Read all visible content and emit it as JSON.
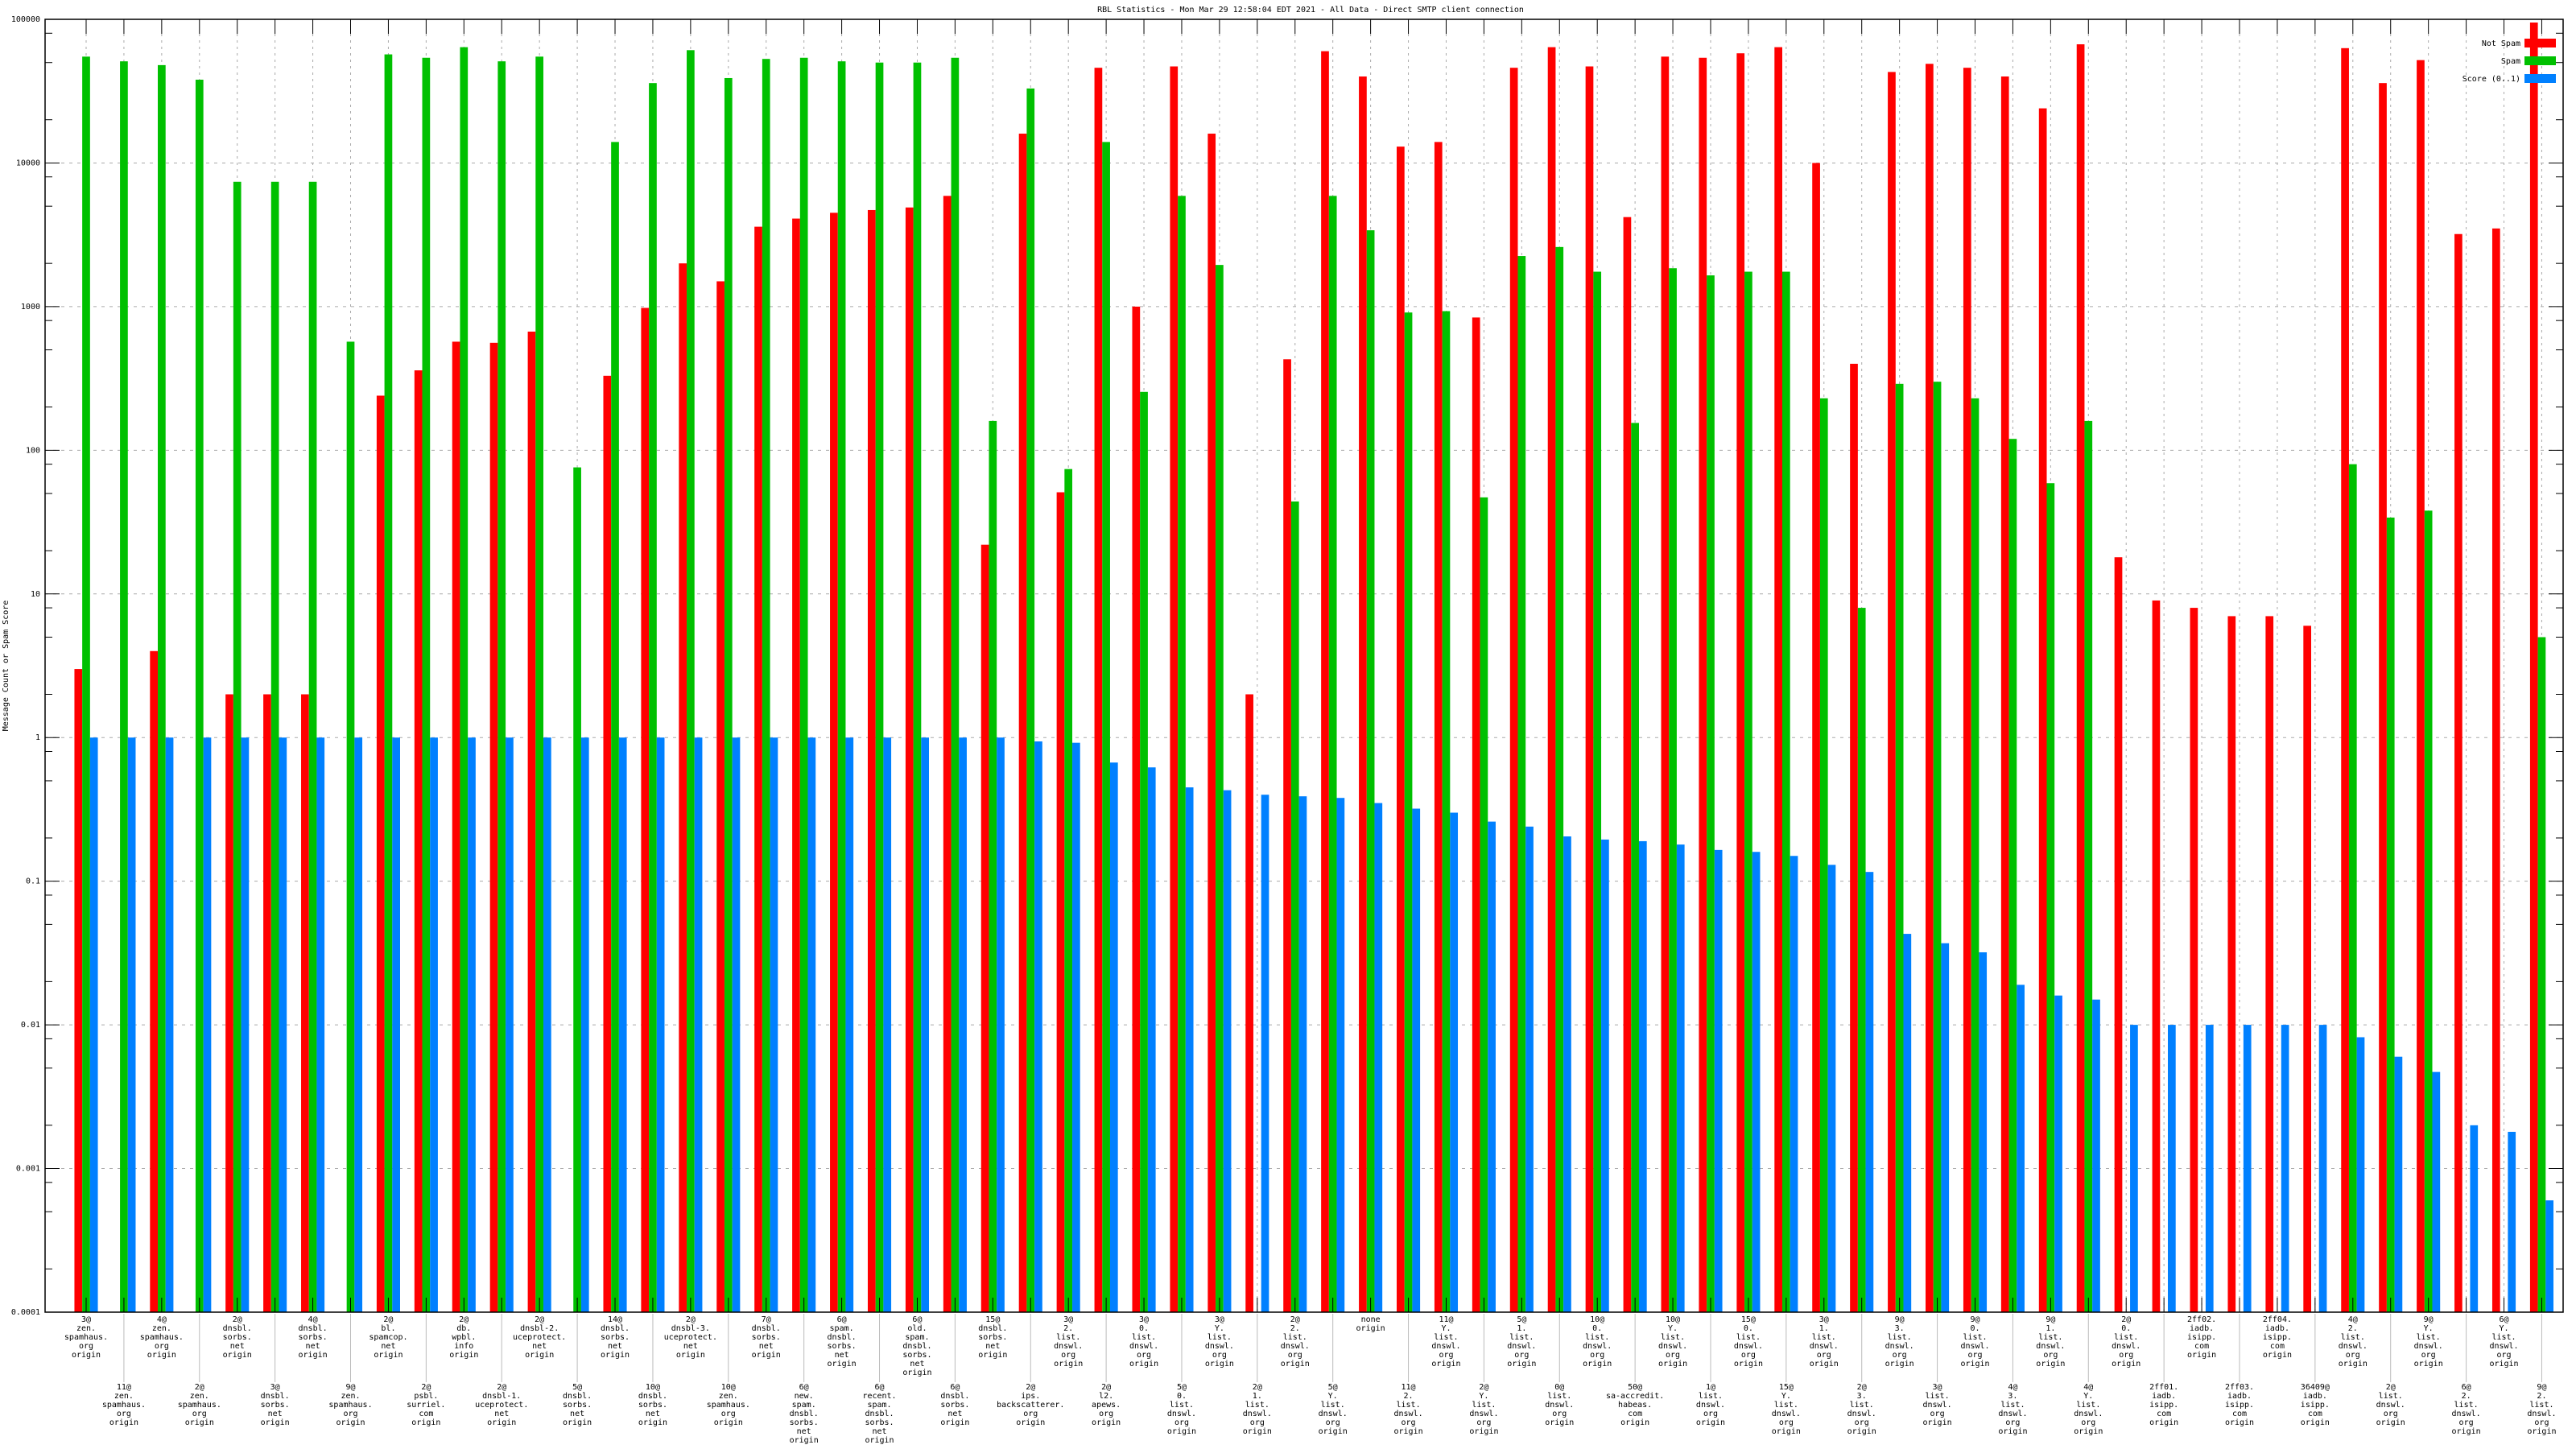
{
  "chart_data": {
    "type": "bar",
    "title": "RBL Statistics - Mon Mar 29 12:58:04 EDT 2021 - All Data - Direct SMTP client connection",
    "xlabel": "",
    "ylabel": "Message Count or Spam Score",
    "yscale": "log",
    "ylim": [
      0.0001,
      100000
    ],
    "yticks": [
      "0.0001",
      "0.001",
      "0.01",
      "0.1",
      "1",
      "10",
      "100",
      "1000",
      "10000",
      "100000"
    ],
    "grid": true,
    "legend_position": "top-right",
    "colors": {
      "Not Spam": "#ff0000",
      "Spam": "#00c000",
      "Score (0..1)": "#0080ff"
    },
    "categories": [
      [
        "3@",
        "zen.",
        "spamhaus.",
        "org",
        "origin"
      ],
      [
        "11@",
        "zen.",
        "spamhaus.",
        "org",
        "origin"
      ],
      [
        "4@",
        "zen.",
        "spamhaus.",
        "org",
        "origin"
      ],
      [
        "2@",
        "zen.",
        "spamhaus.",
        "org",
        "origin"
      ],
      [
        "2@",
        "dnsbl.",
        "sorbs.",
        "net",
        "origin"
      ],
      [
        "3@",
        "dnsbl.",
        "sorbs.",
        "net",
        "origin"
      ],
      [
        "4@",
        "dnsbl.",
        "sorbs.",
        "net",
        "origin"
      ],
      [
        "9@",
        "zen.",
        "spamhaus.",
        "org",
        "origin"
      ],
      [
        "2@",
        "bl.",
        "spamcop.",
        "net",
        "origin"
      ],
      [
        "2@",
        "psbl.",
        "surriel.",
        "com",
        "origin"
      ],
      [
        "2@",
        "db.",
        "wpbl.",
        "info",
        "origin"
      ],
      [
        "2@",
        "dnsbl-1.",
        "uceprotect.",
        "net",
        "origin"
      ],
      [
        "2@",
        "dnsbl-2.",
        "uceprotect.",
        "net",
        "origin"
      ],
      [
        "5@",
        "dnsbl.",
        "sorbs.",
        "net",
        "origin"
      ],
      [
        "14@",
        "dnsbl.",
        "sorbs.",
        "net",
        "origin"
      ],
      [
        "10@",
        "dnsbl.",
        "sorbs.",
        "net",
        "origin"
      ],
      [
        "2@",
        "dnsbl-3.",
        "uceprotect.",
        "net",
        "origin"
      ],
      [
        "10@",
        "zen.",
        "spamhaus.",
        "org",
        "origin"
      ],
      [
        "7@",
        "dnsbl.",
        "sorbs.",
        "net",
        "origin"
      ],
      [
        "6@",
        "new.",
        "spam.",
        "dnsbl.",
        "sorbs.",
        "net",
        "origin"
      ],
      [
        "6@",
        "spam.",
        "dnsbl.",
        "sorbs.",
        "net",
        "origin"
      ],
      [
        "6@",
        "recent.",
        "spam.",
        "dnsbl.",
        "sorbs.",
        "net",
        "origin"
      ],
      [
        "6@",
        "old.",
        "spam.",
        "dnsbl.",
        "sorbs.",
        "net",
        "origin"
      ],
      [
        "6@",
        "dnsbl.",
        "sorbs.",
        "net",
        "origin"
      ],
      [
        "15@",
        "dnsbl.",
        "sorbs.",
        "net",
        "origin"
      ],
      [
        "2@",
        "ips.",
        "backscatterer.",
        "org",
        "origin"
      ],
      [
        "3@",
        "2.",
        "list.",
        "dnswl.",
        "org",
        "origin"
      ],
      [
        "2@",
        "l2.",
        "apews.",
        "org",
        "origin"
      ],
      [
        "3@",
        "0.",
        "list.",
        "dnswl.",
        "org",
        "origin"
      ],
      [
        "5@",
        "0.",
        "list.",
        "dnswl.",
        "org",
        "origin"
      ],
      [
        "3@",
        "Y.",
        "list.",
        "dnswl.",
        "org",
        "origin"
      ],
      [
        "2@",
        "1.",
        "list.",
        "dnswl.",
        "org",
        "origin"
      ],
      [
        "2@",
        "2.",
        "list.",
        "dnswl.",
        "org",
        "origin"
      ],
      [
        "5@",
        "Y.",
        "list.",
        "dnswl.",
        "org",
        "origin"
      ],
      [
        "none",
        "origin"
      ],
      [
        "11@",
        "2.",
        "list.",
        "dnswl.",
        "org",
        "origin"
      ],
      [
        "11@",
        "Y.",
        "list.",
        "dnswl.",
        "org",
        "origin"
      ],
      [
        "2@",
        "Y.",
        "list.",
        "dnswl.",
        "org",
        "origin"
      ],
      [
        "5@",
        "1.",
        "list.",
        "dnswl.",
        "org",
        "origin"
      ],
      [
        "0@",
        "list.",
        "dnswl.",
        "org",
        "origin"
      ],
      [
        "10@",
        "0.",
        "list.",
        "dnswl.",
        "org",
        "origin"
      ],
      [
        "50@",
        "sa-accredit.",
        "habeas.",
        "com",
        "origin"
      ],
      [
        "10@",
        "Y.",
        "list.",
        "dnswl.",
        "org",
        "origin"
      ],
      [
        "1@",
        "list.",
        "dnswl.",
        "org",
        "origin"
      ],
      [
        "15@",
        "0.",
        "list.",
        "dnswl.",
        "org",
        "origin"
      ],
      [
        "15@",
        "Y.",
        "list.",
        "dnswl.",
        "org",
        "origin"
      ],
      [
        "3@",
        "1.",
        "list.",
        "dnswl.",
        "org",
        "origin"
      ],
      [
        "2@",
        "3.",
        "list.",
        "dnswl.",
        "org",
        "origin"
      ],
      [
        "9@",
        "3.",
        "list.",
        "dnswl.",
        "org",
        "origin"
      ],
      [
        "3@",
        "list.",
        "dnswl.",
        "org",
        "origin"
      ],
      [
        "9@",
        "0.",
        "list.",
        "dnswl.",
        "org",
        "origin"
      ],
      [
        "4@",
        "3.",
        "list.",
        "dnswl.",
        "org",
        "origin"
      ],
      [
        "9@",
        "1.",
        "list.",
        "dnswl.",
        "org",
        "origin"
      ],
      [
        "4@",
        "Y.",
        "list.",
        "dnswl.",
        "org",
        "origin"
      ],
      [
        "2@",
        "0.",
        "list.",
        "dnswl.",
        "org",
        "origin"
      ],
      [
        "2ff01.",
        "iadb.",
        "isipp.",
        "com",
        "origin"
      ],
      [
        "2ff02.",
        "iadb.",
        "isipp.",
        "com",
        "origin"
      ],
      [
        "2ff03.",
        "iadb.",
        "isipp.",
        "com",
        "origin"
      ],
      [
        "2ff04.",
        "iadb.",
        "isipp.",
        "com",
        "origin"
      ],
      [
        "36409@",
        "iadb.",
        "isipp.",
        "com",
        "origin"
      ],
      [
        "4@",
        "2.",
        "list.",
        "dnswl.",
        "org",
        "origin"
      ],
      [
        "2@",
        "list.",
        "dnswl.",
        "org",
        "origin"
      ],
      [
        "9@",
        "Y.",
        "list.",
        "dnswl.",
        "org",
        "origin"
      ],
      [
        "6@",
        "2.",
        "list.",
        "dnswl.",
        "org",
        "origin"
      ],
      [
        "6@",
        "Y.",
        "list.",
        "dnswl.",
        "org",
        "origin"
      ],
      [
        "9@",
        "2.",
        "list.",
        "dnswl.",
        "org",
        "origin"
      ]
    ],
    "series": [
      {
        "name": "Not Spam",
        "values": [
          3,
          null,
          4,
          null,
          2,
          2,
          2,
          null,
          240,
          360,
          570,
          560,
          670,
          null,
          330,
          980,
          2000,
          1500,
          3600,
          4100,
          4500,
          4700,
          4900,
          5900,
          22,
          16000,
          51,
          46000,
          1000,
          47000,
          16000,
          2,
          430,
          60000,
          40000,
          13000,
          14000,
          840,
          46000,
          64000,
          47000,
          4200,
          55000,
          54000,
          58000,
          64000,
          10000,
          400,
          43000,
          49000,
          46000,
          40000,
          24000,
          67000,
          18,
          9,
          8,
          7,
          7,
          6,
          63000,
          36000,
          52000,
          3200,
          3500,
          95000
        ]
      },
      {
        "name": "Spam",
        "values": [
          55000,
          51000,
          48000,
          38000,
          7400,
          7400,
          7400,
          570,
          57000,
          54000,
          64000,
          51000,
          55000,
          76,
          14000,
          36000,
          61000,
          39000,
          53000,
          54000,
          51000,
          50000,
          50000,
          54000,
          160,
          33000,
          74,
          14000,
          255,
          5900,
          1950,
          null,
          44,
          5900,
          3400,
          910,
          930,
          47,
          2250,
          2600,
          1750,
          155,
          1850,
          1650,
          1750,
          1750,
          230,
          8,
          290,
          300,
          230,
          120,
          59,
          160,
          null,
          null,
          null,
          null,
          null,
          null,
          80,
          34,
          38,
          null,
          null,
          5
        ]
      },
      {
        "name": "Score (0..1)",
        "values": [
          1,
          1,
          1,
          1,
          1,
          1,
          1,
          1,
          1,
          1,
          1,
          1,
          1,
          1,
          1,
          1,
          1,
          1,
          1,
          1,
          1,
          1,
          1,
          1,
          1,
          0.94,
          0.92,
          0.67,
          0.62,
          0.45,
          0.43,
          0.4,
          0.39,
          0.38,
          0.35,
          0.32,
          0.3,
          0.26,
          0.24,
          0.205,
          0.195,
          0.19,
          0.18,
          0.165,
          0.16,
          0.15,
          0.13,
          0.116,
          0.043,
          0.037,
          0.032,
          0.019,
          0.016,
          0.015,
          0.01,
          0.01,
          0.01,
          0.01,
          0.01,
          0.01,
          0.0082,
          0.006,
          0.0047,
          0.002,
          0.0018,
          0.0006
        ]
      }
    ]
  }
}
